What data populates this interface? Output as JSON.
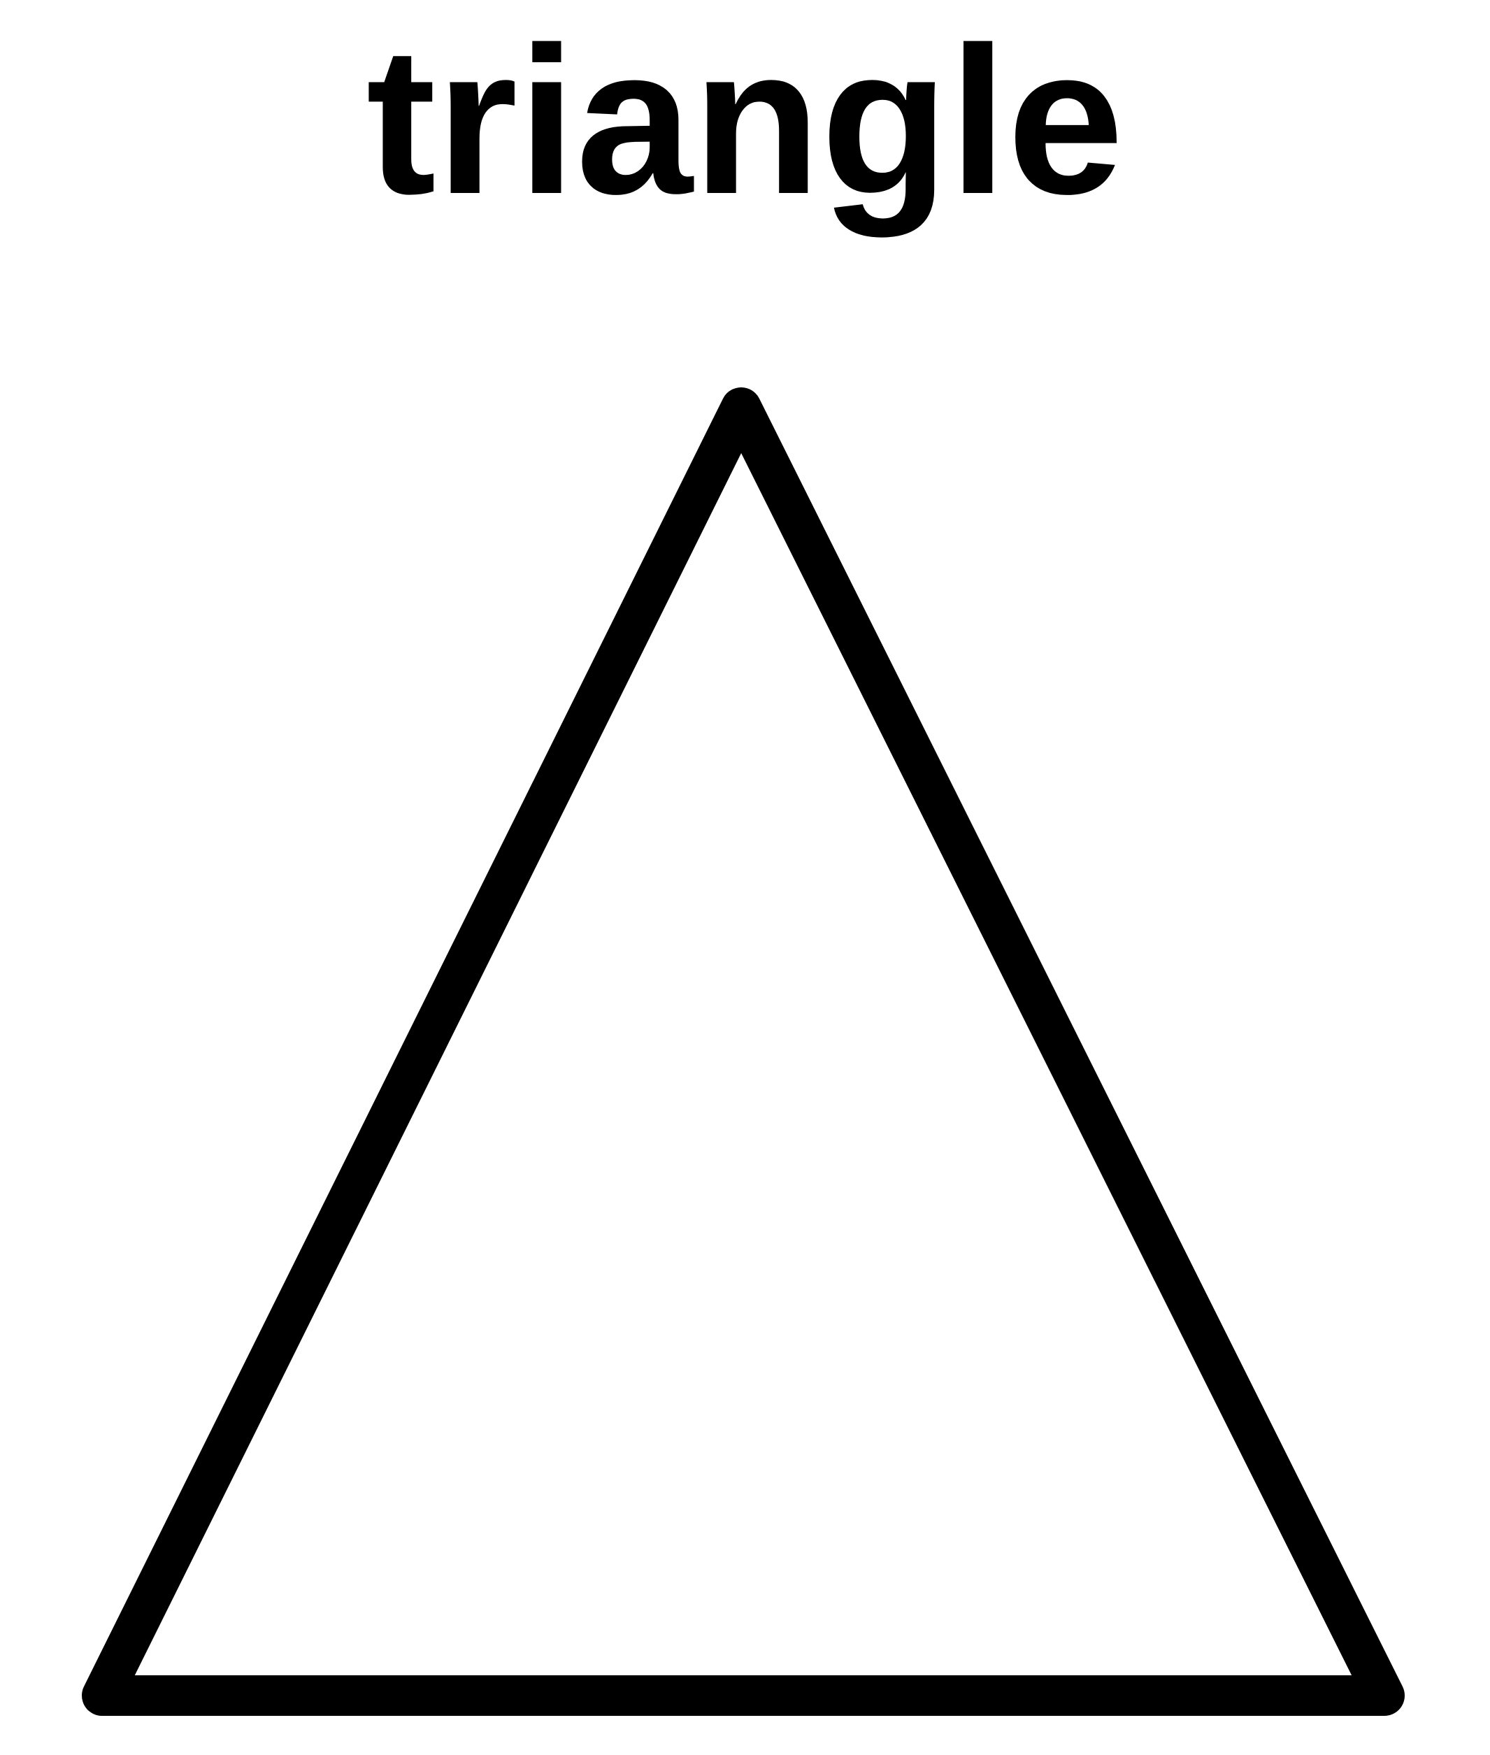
{
  "title": "triangle",
  "shape": {
    "kind": "triangle",
    "stroke_color": "#000000",
    "fill_color": "#ffffff"
  }
}
